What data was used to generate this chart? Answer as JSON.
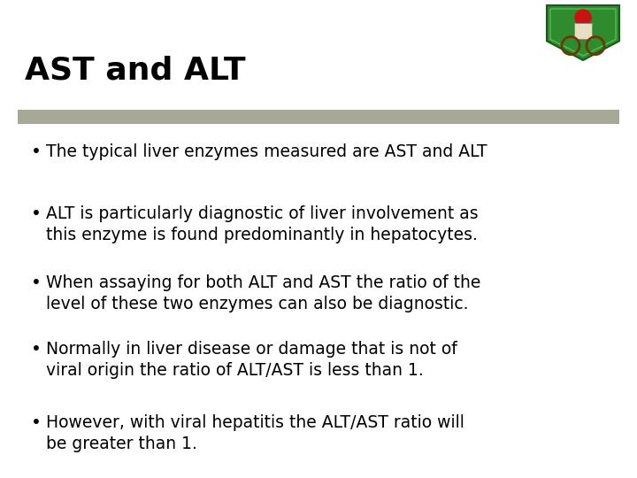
{
  "title": "AST and ALT",
  "title_fontsize": 26,
  "title_color": "#000000",
  "background_color": "#ffffff",
  "separator_color": "#a8a899",
  "bullet_points": [
    "The typical liver enzymes measured are AST and ALT",
    "ALT is particularly diagnostic of liver involvement as\nthis enzyme is found predominantly in hepatocytes.",
    "When assaying for both ALT and AST the ratio of the\nlevel of these two enzymes can also be diagnostic.",
    "Normally in liver disease or damage that is not of\nviral origin the ratio of ALT/AST is less than 1.",
    "However, with viral hepatitis the ALT/AST ratio will\nbe greater than 1."
  ],
  "bullet_fontsize": 13.5,
  "bullet_color": "#000000",
  "text_font": "DejaVu Sans"
}
